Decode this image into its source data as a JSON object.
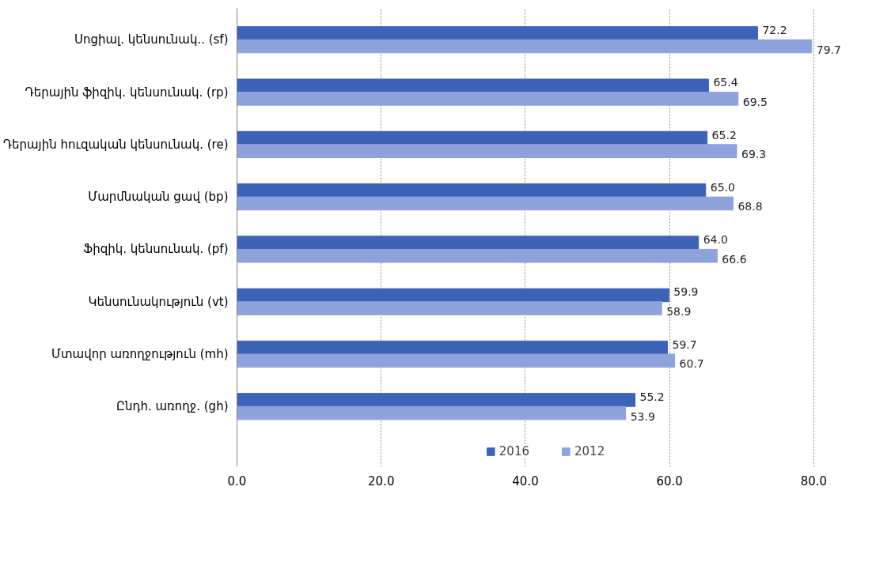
{
  "chart_data": {
    "type": "bar",
    "orientation": "horizontal",
    "categories": [
      "Սոցիալ. կենսունակ.. (sf)",
      "Դերային ֆիզիկ. կենսունակ. (rp)",
      "Դերային հուզական կենսունակ. (re)",
      "Մարմնական ցավ (bp)",
      "Ֆիզիկ. կենսունակ. (pf)",
      "Կենսունակություն (vt)",
      "Մտավոր առողջություն (mh)",
      "Ընդհ. առողջ. (gh)"
    ],
    "series": [
      {
        "name": "2016",
        "color": "#3c63b8",
        "values": [
          72.2,
          65.4,
          65.2,
          65.0,
          64.0,
          59.9,
          59.7,
          55.2
        ],
        "value_labels": [
          "72.2",
          "65.4",
          "65.2",
          "65.0",
          "64.0",
          "59.9",
          "59.7",
          "55.2"
        ]
      },
      {
        "name": "2012",
        "color": "#8ea2dc",
        "values": [
          79.7,
          69.5,
          69.3,
          68.8,
          66.6,
          58.9,
          60.7,
          53.9
        ],
        "value_labels": [
          "79.7",
          "69.5",
          "69.3",
          "68.8",
          "66.6",
          "58.9",
          "60.7",
          "53.9"
        ]
      }
    ],
    "xlim": [
      0,
      80
    ],
    "xticks": [
      {
        "value": 0,
        "label": "0.0"
      },
      {
        "value": 20,
        "label": "20.0"
      },
      {
        "value": 40,
        "label": "40.0"
      },
      {
        "value": 60,
        "label": "60.0"
      },
      {
        "value": 80,
        "label": "80.0"
      }
    ],
    "grid": "x",
    "legend": "bottom"
  }
}
